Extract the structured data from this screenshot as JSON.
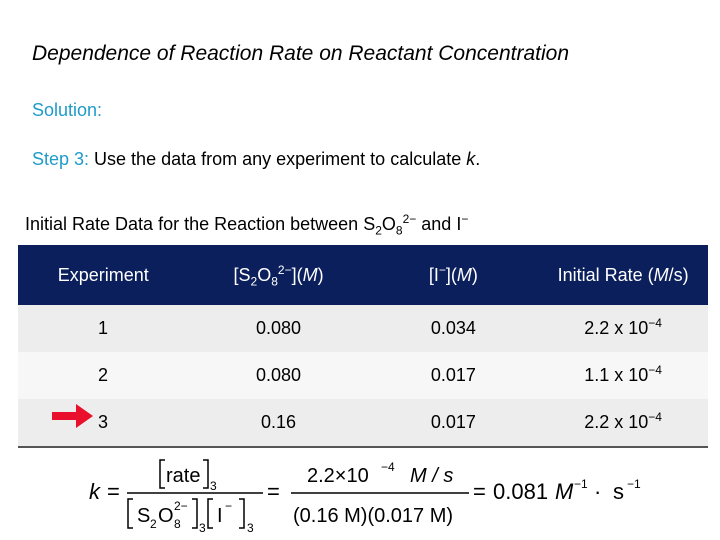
{
  "title": "Dependence of Reaction Rate on Reactant Concentration",
  "solution_label": "Solution:",
  "step": {
    "label": "Step 3:",
    "text": " Use the data from any experiment to calculate ",
    "var": "k",
    "end": "."
  },
  "caption": {
    "prefix": "Initial Rate Data for the Reaction between S",
    "s2": "2",
    "o": "O",
    "o8": "8",
    "charge": "2−",
    "mid": " and I",
    "i_charge": "−"
  },
  "table": {
    "headers": {
      "experiment": "Experiment",
      "s2o8": {
        "open": "[S",
        "s": "2",
        "o": "O",
        "o8": "8",
        "charge": "2−",
        "close": "](",
        "unit": "M",
        "end": ")"
      },
      "iodide": {
        "open": "[I",
        "charge": "−",
        "close": "](",
        "unit": "M",
        "end": ")"
      },
      "rate": {
        "text": "Initial Rate (",
        "unit": "M",
        "end": "/s)"
      }
    },
    "rows": [
      {
        "experiment": "1",
        "s2o8": "0.080",
        "iodide": "0.034",
        "rate_base": "2.2 x 10",
        "rate_exp": "−4"
      },
      {
        "experiment": "2",
        "s2o8": "0.080",
        "iodide": "0.017",
        "rate_base": "1.1 x 10",
        "rate_exp": "−4"
      },
      {
        "experiment": "3",
        "s2o8": "0.16",
        "iodide": "0.017",
        "rate_base": "2.2 x 10",
        "rate_exp": "−4"
      }
    ]
  },
  "highlight_arrow_color": "#e8102a",
  "equation": {
    "k": "k",
    "eq1": "=",
    "rate": "rate",
    "sub3": "3",
    "s": "S",
    "o": "O",
    "s2": "2",
    "o8": "8",
    "charge": "2−",
    "iodide": "I",
    "i_charge": "−",
    "eq2": "=",
    "num_base": "2.2×10",
    "num_exp": "−4",
    "num_unit": "M / s",
    "den": "(0.16 M)(0.017 M)",
    "eq3": "=",
    "result": "0.081",
    "res_unit": "M",
    "res_exp": "−1",
    "dot": "·",
    "res_s": "s",
    "res_s_exp": "−1"
  }
}
